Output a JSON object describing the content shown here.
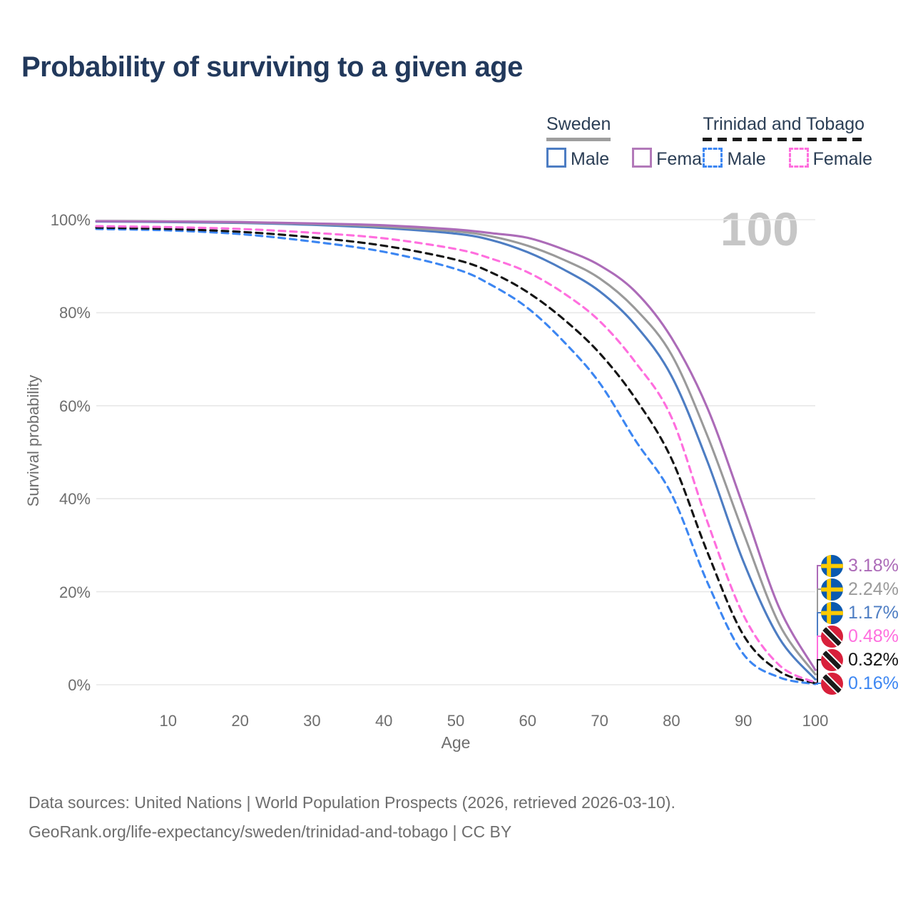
{
  "title": "Probability of surviving to a given age",
  "age_counter": "100",
  "legend": {
    "groups": [
      {
        "label": "Sweden",
        "underline_color": "#9e9e9e",
        "underline_style": "solid",
        "items": [
          {
            "label": "Male",
            "color": "#4d7dc3",
            "dash": false
          },
          {
            "label": "Female",
            "color": "#b279b9",
            "dash": false
          }
        ]
      },
      {
        "label": "Trinidad and Tobago",
        "underline_color": "#1a1a1a",
        "underline_style": "dashed",
        "items": [
          {
            "label": "Male",
            "color": "#3c86f2",
            "dash": true
          },
          {
            "label": "Female",
            "color": "#ff6ede",
            "dash": true
          }
        ]
      }
    ]
  },
  "y_axis": {
    "title": "Survival probability",
    "ticks": [
      {
        "value": 0,
        "label": "0%"
      },
      {
        "value": 20,
        "label": "20%"
      },
      {
        "value": 40,
        "label": "40%"
      },
      {
        "value": 60,
        "label": "60%"
      },
      {
        "value": 80,
        "label": "80%"
      },
      {
        "value": 100,
        "label": "100%"
      }
    ]
  },
  "x_axis": {
    "title": "Age",
    "ticks": [
      {
        "value": 10,
        "label": "10"
      },
      {
        "value": 20,
        "label": "20"
      },
      {
        "value": 30,
        "label": "30"
      },
      {
        "value": 40,
        "label": "40"
      },
      {
        "value": 50,
        "label": "50"
      },
      {
        "value": 60,
        "label": "60"
      },
      {
        "value": 70,
        "label": "70"
      },
      {
        "value": 80,
        "label": "80"
      },
      {
        "value": 90,
        "label": "90"
      },
      {
        "value": 100,
        "label": "100"
      }
    ]
  },
  "chart_data": {
    "type": "line",
    "title": "Probability of surviving to a given age",
    "xlabel": "Age",
    "ylabel": "Survival probability",
    "xlim": [
      0,
      100
    ],
    "ylim": [
      0,
      100
    ],
    "grid": "horizontal",
    "legend_position": "top-right",
    "x": [
      0,
      10,
      20,
      30,
      40,
      50,
      55,
      60,
      65,
      70,
      75,
      80,
      85,
      90,
      95,
      100
    ],
    "series": [
      {
        "name": "Sweden Female",
        "country": "Sweden",
        "sex": "Female",
        "color": "#ac6bb8",
        "dash": false,
        "flag": "sweden",
        "end_label": "3.18%",
        "values": [
          99.7,
          99.6,
          99.5,
          99.2,
          98.8,
          97.9,
          97.1,
          96.1,
          93.6,
          90.2,
          84.5,
          74.6,
          59.5,
          38.3,
          16.5,
          3.18
        ]
      },
      {
        "name": "Sweden",
        "country": "Sweden",
        "sex": "Both",
        "color": "#9a9a9a",
        "dash": false,
        "flag": "sweden",
        "end_label": "2.24%",
        "values": [
          99.7,
          99.6,
          99.4,
          99.1,
          98.5,
          97.5,
          96.4,
          94.4,
          91.4,
          87.4,
          80.8,
          71.0,
          53.5,
          32.7,
          13.0,
          2.24
        ]
      },
      {
        "name": "Sweden Male",
        "country": "Sweden",
        "sex": "Male",
        "color": "#4d7dc3",
        "dash": false,
        "flag": "sweden",
        "end_label": "1.17%",
        "values": [
          99.6,
          99.5,
          99.3,
          98.9,
          98.2,
          97.0,
          95.6,
          93.0,
          89.3,
          84.6,
          77.3,
          66.4,
          48.0,
          26.5,
          10.0,
          1.17
        ]
      },
      {
        "name": "Trinidad and Tobago Female",
        "country": "Trinidad and Tobago",
        "sex": "Female",
        "color": "#ff6ede",
        "dash": true,
        "flag": "trinidad",
        "end_label": "0.48%",
        "values": [
          98.6,
          98.4,
          98.0,
          97.2,
          96.0,
          93.7,
          91.6,
          88.7,
          84.2,
          78.2,
          69.3,
          57.5,
          35.0,
          15.0,
          4.2,
          0.48
        ]
      },
      {
        "name": "Trinidad and Tobago",
        "country": "Trinidad and Tobago",
        "sex": "Both",
        "color": "#141414",
        "dash": true,
        "flag": "trinidad",
        "end_label": "0.32%",
        "values": [
          98.3,
          98.0,
          97.4,
          96.2,
          94.4,
          91.4,
          88.6,
          84.4,
          78.6,
          71.3,
          61.5,
          48.6,
          28.5,
          10.7,
          2.9,
          0.32
        ]
      },
      {
        "name": "Trinidad and Tobago Male",
        "country": "Trinidad and Tobago",
        "sex": "Male",
        "color": "#3c86f2",
        "dash": true,
        "flag": "trinidad",
        "end_label": "0.16%",
        "values": [
          98.0,
          97.7,
          96.9,
          95.3,
          93.1,
          89.4,
          85.9,
          81.0,
          73.8,
          64.9,
          52.5,
          41.0,
          22.0,
          6.6,
          1.6,
          0.16
        ]
      }
    ]
  },
  "flags": {
    "sweden": {
      "field": "#0b5ab0",
      "cross": "#fdca00"
    },
    "trinidad": {
      "field": "#d8203b",
      "band": "#1a1a1a",
      "fimbriation": "#ffffff"
    }
  },
  "colors": {
    "title": "#22395c",
    "axis_text": "#6e6e6e",
    "gridline": "#e8e8e8",
    "watermark": "#c6c6c6"
  },
  "footer": {
    "line1": "Data sources: United Nations | World Population Prospects (2026, retrieved 2026-03-10).",
    "line2": "GeoRank.org/life-expectancy/sweden/trinidad-and-tobago | CC BY"
  }
}
